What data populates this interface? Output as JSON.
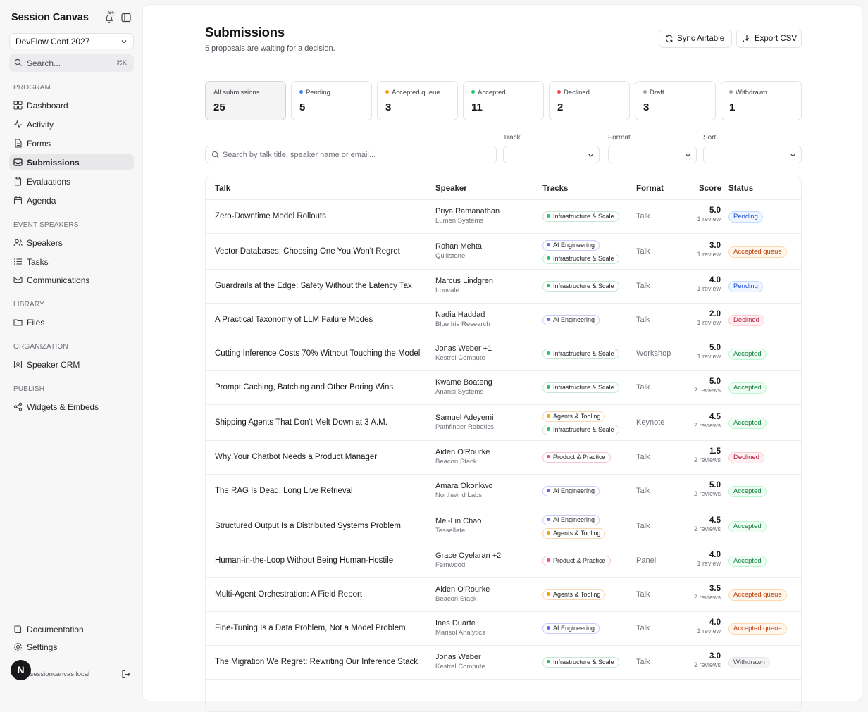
{
  "app": {
    "title": "Session Canvas",
    "notification_badge": "9+",
    "event_selector": "DevFlow Conf 2027",
    "search_placeholder": "Search...",
    "search_shortcut": "⌘K"
  },
  "sidebar": {
    "sections": {
      "program": "PROGRAM",
      "event_speakers": "EVENT SPEAKERS",
      "library": "LIBRARY",
      "organization": "ORGANIZATION",
      "publish": "PUBLISH"
    },
    "items": {
      "dashboard": "Dashboard",
      "activity": "Activity",
      "forms": "Forms",
      "submissions": "Submissions",
      "evaluations": "Evaluations",
      "agenda": "Agenda",
      "speakers": "Speakers",
      "tasks": "Tasks",
      "communications": "Communications",
      "files": "Files",
      "speaker_crm": "Speaker CRM",
      "widgets": "Widgets & Embeds",
      "documentation": "Documentation",
      "settings": "Settings"
    },
    "user": {
      "avatar_letter": "N",
      "email": "@sessioncanvas.local"
    }
  },
  "page": {
    "title": "Submissions",
    "subtitle": "5 proposals are waiting for a decision.",
    "sync_button": "Sync Airtable",
    "export_button": "Export CSV"
  },
  "stats": [
    {
      "label": "All submissions",
      "value": "25",
      "color": ""
    },
    {
      "label": "Pending",
      "value": "5",
      "color": "#3b82f6"
    },
    {
      "label": "Accepted queue",
      "value": "3",
      "color": "#f59e0b"
    },
    {
      "label": "Accepted",
      "value": "11",
      "color": "#22c55e"
    },
    {
      "label": "Declined",
      "value": "2",
      "color": "#ef4444"
    },
    {
      "label": "Draft",
      "value": "3",
      "color": "#a1a1aa"
    },
    {
      "label": "Withdrawn",
      "value": "1",
      "color": "#a1a1aa"
    }
  ],
  "filters": {
    "search_placeholder": "Search by talk title, speaker name or email...",
    "track_label": "Track",
    "format_label": "Format",
    "sort_label": "Sort"
  },
  "table": {
    "headers": {
      "talk": "Talk",
      "speaker": "Speaker",
      "tracks": "Tracks",
      "format": "Format",
      "score": "Score",
      "status": "Status"
    },
    "track_colors": {
      "AI Engineering": "#6366f1",
      "Infrastructure & Scale": "#22c55e",
      "Agents & Tooling": "#f59e0b",
      "Product & Practice": "#ec4899"
    },
    "rows": [
      {
        "talk": "Zero-Downtime Model Rollouts",
        "speaker": "Priya Ramanathan",
        "company": "Lumen Systems",
        "tracks": [
          "Infrastructure & Scale"
        ],
        "format": "Talk",
        "score": "5.0",
        "reviews": "1 review",
        "status": "Pending"
      },
      {
        "talk": "Vector Databases: Choosing One You Won't Regret",
        "speaker": "Rohan Mehta",
        "company": "Quillstone",
        "tracks": [
          "AI Engineering",
          "Infrastructure & Scale"
        ],
        "format": "Talk",
        "score": "3.0",
        "reviews": "1 review",
        "status": "Accepted queue"
      },
      {
        "talk": "Guardrails at the Edge: Safety Without the Latency Tax",
        "speaker": "Marcus Lindgren",
        "company": "Ironvale",
        "tracks": [
          "Infrastructure & Scale"
        ],
        "format": "Talk",
        "score": "4.0",
        "reviews": "1 review",
        "status": "Pending"
      },
      {
        "talk": "A Practical Taxonomy of LLM Failure Modes",
        "speaker": "Nadia Haddad",
        "company": "Blue Iris Research",
        "tracks": [
          "AI Engineering"
        ],
        "format": "Talk",
        "score": "2.0",
        "reviews": "1 review",
        "status": "Declined"
      },
      {
        "talk": "Cutting Inference Costs 70% Without Touching the Model",
        "speaker": "Jonas Weber +1",
        "company": "Kestrel Compute",
        "tracks": [
          "Infrastructure & Scale"
        ],
        "format": "Workshop",
        "score": "5.0",
        "reviews": "1 review",
        "status": "Accepted"
      },
      {
        "talk": "Prompt Caching, Batching and Other Boring Wins",
        "speaker": "Kwame Boateng",
        "company": "Anansi Systems",
        "tracks": [
          "Infrastructure & Scale"
        ],
        "format": "Talk",
        "score": "5.0",
        "reviews": "2 reviews",
        "status": "Accepted"
      },
      {
        "talk": "Shipping Agents That Don't Melt Down at 3 A.M.",
        "speaker": "Samuel Adeyemi",
        "company": "Pathfinder Robotics",
        "tracks": [
          "Agents & Tooling",
          "Infrastructure & Scale"
        ],
        "format": "Keynote",
        "score": "4.5",
        "reviews": "2 reviews",
        "status": "Accepted"
      },
      {
        "talk": "Why Your Chatbot Needs a Product Manager",
        "speaker": "Aiden O'Rourke",
        "company": "Beacon Stack",
        "tracks": [
          "Product & Practice"
        ],
        "format": "Talk",
        "score": "1.5",
        "reviews": "2 reviews",
        "status": "Declined"
      },
      {
        "talk": "The RAG Is Dead, Long Live Retrieval",
        "speaker": "Amara Okonkwo",
        "company": "Northwind Labs",
        "tracks": [
          "AI Engineering"
        ],
        "format": "Talk",
        "score": "5.0",
        "reviews": "2 reviews",
        "status": "Accepted"
      },
      {
        "talk": "Structured Output Is a Distributed Systems Problem",
        "speaker": "Mei-Lin Chao",
        "company": "Tessellate",
        "tracks": [
          "AI Engineering",
          "Agents & Tooling"
        ],
        "format": "Talk",
        "score": "4.5",
        "reviews": "2 reviews",
        "status": "Accepted"
      },
      {
        "talk": "Human-in-the-Loop Without Being Human-Hostile",
        "speaker": "Grace Oyelaran +2",
        "company": "Fernwood",
        "tracks": [
          "Product & Practice"
        ],
        "format": "Panel",
        "score": "4.0",
        "reviews": "1 review",
        "status": "Accepted"
      },
      {
        "talk": "Multi-Agent Orchestration: A Field Report",
        "speaker": "Aiden O'Rourke",
        "company": "Beacon Stack",
        "tracks": [
          "Agents & Tooling"
        ],
        "format": "Talk",
        "score": "3.5",
        "reviews": "2 reviews",
        "status": "Accepted queue"
      },
      {
        "talk": "Fine-Tuning Is a Data Problem, Not a Model Problem",
        "speaker": "Ines Duarte",
        "company": "Marisol Analytics",
        "tracks": [
          "AI Engineering"
        ],
        "format": "Talk",
        "score": "4.0",
        "reviews": "1 review",
        "status": "Accepted queue"
      },
      {
        "talk": "The Migration We Regret: Rewriting Our Inference Stack",
        "speaker": "Jonas Weber",
        "company": "Kestrel Compute",
        "tracks": [
          "Infrastructure & Scale"
        ],
        "format": "Talk",
        "score": "3.0",
        "reviews": "2 reviews",
        "status": "Withdrawn"
      }
    ]
  }
}
